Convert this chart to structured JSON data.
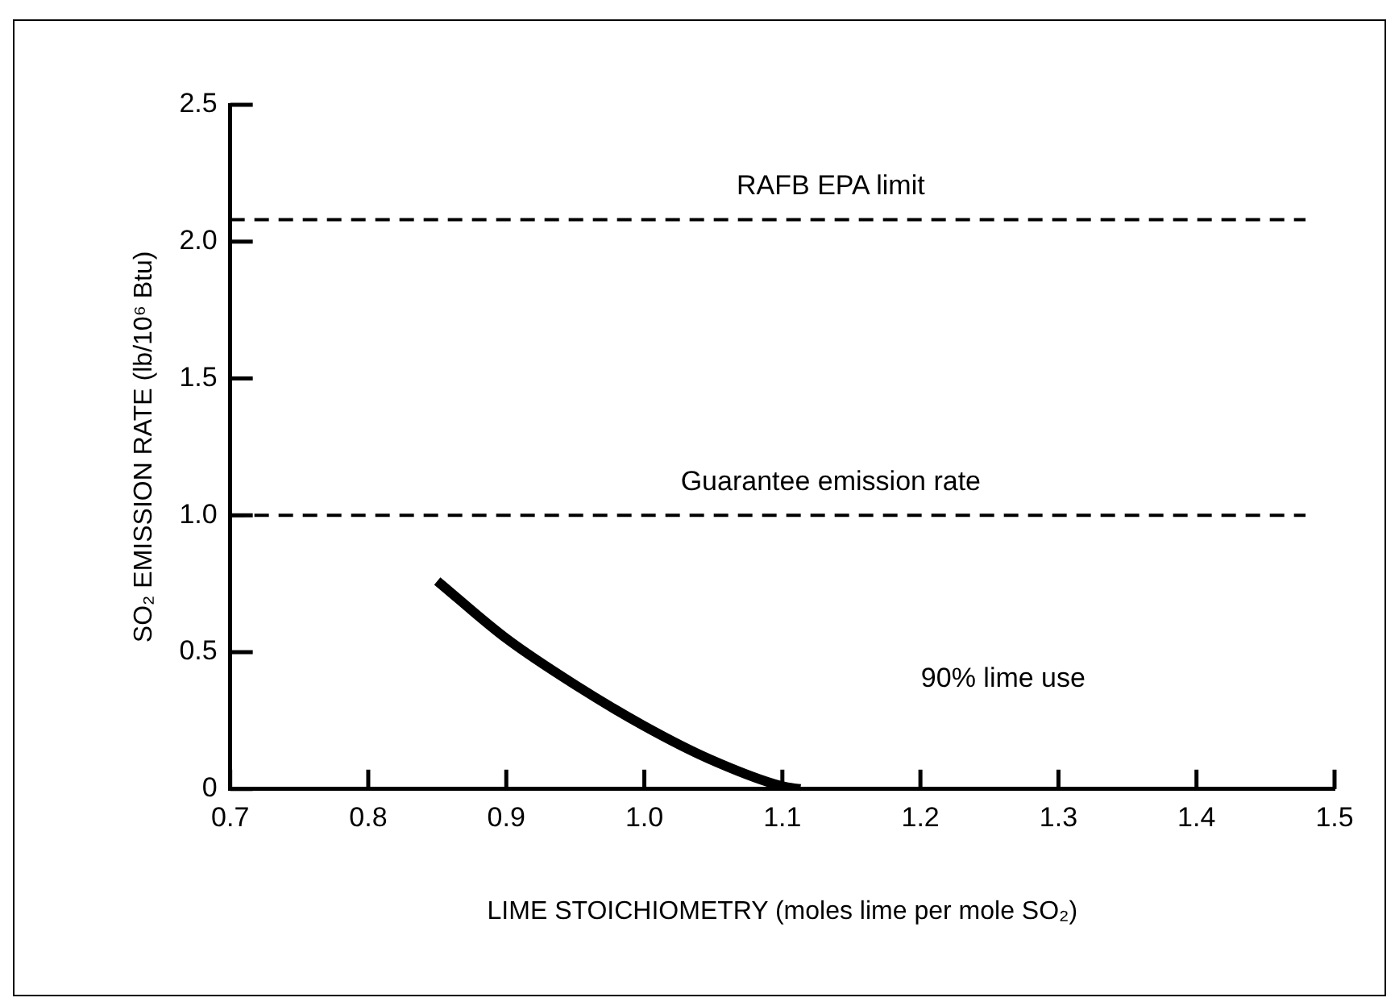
{
  "chart_data": {
    "type": "line",
    "xlabel": "LIME STOICHIOMETRY (moles lime per mole SO₂)",
    "ylabel": "SO₂ EMISSION RATE (lb/10⁶ Btu)",
    "annotations": [
      "90% lime use"
    ],
    "series": [
      {
        "color": "#000000",
        "x": [
          0.85,
          0.9,
          0.95,
          1.0,
          1.047,
          1.1,
          1.113
        ],
        "values": [
          0.76,
          0.55,
          0.38,
          0.23,
          0.11,
          0.01,
          0
        ]
      }
    ],
    "xlim": [
      0.7,
      1.5
    ],
    "xticks": [
      0.7,
      0.8,
      0.9,
      {
        "value": 1,
        "label": "1.0"
      },
      1.1,
      1.2,
      1.3,
      1.4,
      1.5
    ],
    "ylim": [
      0,
      2.5
    ],
    "yticks": [
      0,
      0.5,
      {
        "value": 1,
        "label": "1.0"
      },
      1.5,
      {
        "value": 2,
        "label": "2.0"
      },
      2.5
    ],
    "ref_lines": [
      {
        "axis": "y",
        "value": 2.08,
        "label": "RAFB EPA limit",
        "color": "#000000",
        "line_style": "dashed"
      },
      {
        "axis": "y",
        "value": 1.0,
        "label": "Guarantee emission rate",
        "color": "#000000",
        "line_style": "dashed"
      }
    ],
    "grid": false,
    "legend": false,
    "marker": "none",
    "line_style": "solid"
  }
}
